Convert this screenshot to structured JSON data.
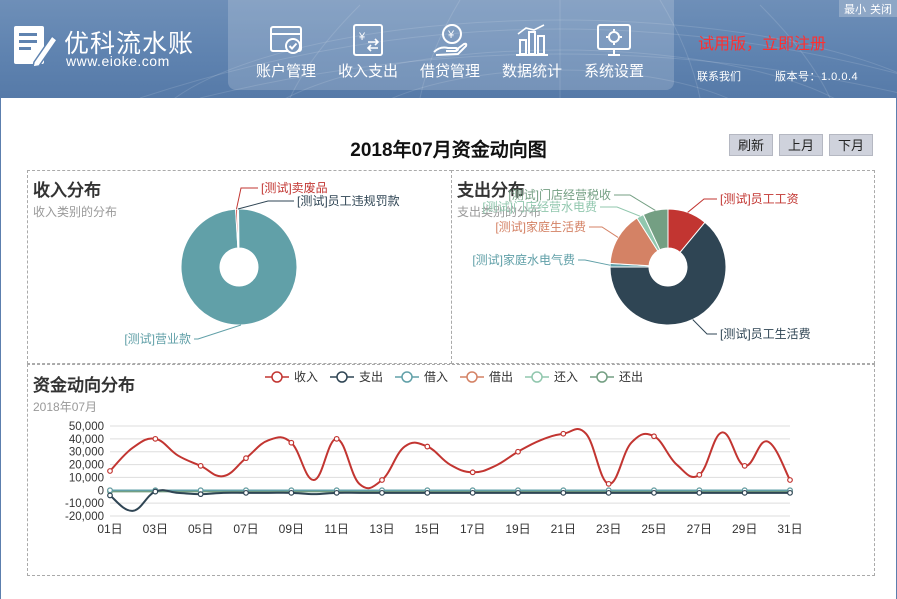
{
  "header": {
    "brand_name": "优科流水账",
    "brand_url": "www.eioke.com",
    "nav": [
      {
        "label": "账户管理",
        "icon": "account-card-icon"
      },
      {
        "label": "收入支出",
        "icon": "income-expense-icon"
      },
      {
        "label": "借贷管理",
        "icon": "loan-hand-icon"
      },
      {
        "label": "数据统计",
        "icon": "data-stats-icon"
      },
      {
        "label": "系统设置",
        "icon": "settings-monitor-icon"
      }
    ],
    "trial_text": "试用版，立即注册",
    "contact": "联系我们",
    "version": "版本号：1.0.0.4",
    "minimize": "最小",
    "close": "关闭"
  },
  "page": {
    "title": "2018年07月资金动向图",
    "buttons": {
      "refresh": "刷新",
      "prev": "上月",
      "next": "下月"
    }
  },
  "colors": {
    "income": "#c23531",
    "expense": "#2f4554",
    "borrow_in": "#61a0a8",
    "lend_out": "#d48265",
    "repay_in": "#91c7ae",
    "repay_out": "#749f83"
  },
  "chart_data": [
    {
      "type": "pie",
      "title": "收入分布",
      "subtitle": "收入类别的分布",
      "slices": [
        {
          "name": "[测试]营业款",
          "value": 99.2
        },
        {
          "name": "[测试]卖废品",
          "value": 0.5
        },
        {
          "name": "[测试]员工违规罚款",
          "value": 0.3
        }
      ]
    },
    {
      "type": "pie",
      "title": "支出分布",
      "subtitle": "支出类别的分布",
      "slices": [
        {
          "name": "[测试]员工工资",
          "value": 11
        },
        {
          "name": "[测试]员工生活费",
          "value": 64
        },
        {
          "name": "[测试]家庭水电气费",
          "value": 1
        },
        {
          "name": "[测试]家庭生活费",
          "value": 15
        },
        {
          "name": "[测试]门店经营水电费",
          "value": 2
        },
        {
          "name": "[测试]门店经营税收",
          "value": 7
        }
      ]
    },
    {
      "type": "line",
      "title": "资金动向分布",
      "subtitle": "2018年07月",
      "x": [
        "01日",
        "02日",
        "03日",
        "04日",
        "05日",
        "06日",
        "07日",
        "08日",
        "09日",
        "10日",
        "11日",
        "12日",
        "13日",
        "14日",
        "15日",
        "16日",
        "17日",
        "18日",
        "19日",
        "20日",
        "21日",
        "22日",
        "23日",
        "24日",
        "25日",
        "26日",
        "27日",
        "28日",
        "29日",
        "30日",
        "31日"
      ],
      "x_ticks": [
        "01日",
        "03日",
        "05日",
        "07日",
        "09日",
        "11日",
        "13日",
        "15日",
        "17日",
        "19日",
        "21日",
        "23日",
        "25日",
        "27日",
        "29日",
        "31日"
      ],
      "y_ticks": [
        "50,000",
        "40,000",
        "30,000",
        "20,000",
        "10,000",
        "0",
        "-10,000",
        "-20,000"
      ],
      "ylim": [
        -20000,
        50000
      ],
      "legend_position": "top",
      "series": [
        {
          "name": "收入",
          "values": [
            15000,
            33000,
            40000,
            27000,
            19000,
            11000,
            25000,
            39000,
            37000,
            8000,
            40000,
            5000,
            8000,
            34000,
            34000,
            20000,
            14000,
            19000,
            30000,
            39000,
            44000,
            44000,
            5000,
            37000,
            42000,
            20000,
            12000,
            45000,
            19000,
            38000,
            8000
          ]
        },
        {
          "name": "支出",
          "values": [
            -4000,
            -16000,
            -1000,
            -2000,
            -3000,
            -2000,
            -2000,
            -2000,
            -2000,
            -3000,
            -2000,
            -2000,
            -2000,
            -2000,
            -2000,
            -2000,
            -2000,
            -2000,
            -2000,
            -2000,
            -2000,
            -2000,
            -2000,
            -2000,
            -2000,
            -2000,
            -2000,
            -2000,
            -2000,
            -2000,
            -2000
          ]
        },
        {
          "name": "借入",
          "values": [
            0,
            0,
            0,
            0,
            0,
            0,
            0,
            0,
            0,
            0,
            0,
            0,
            0,
            0,
            0,
            0,
            0,
            0,
            0,
            0,
            0,
            0,
            0,
            0,
            0,
            0,
            0,
            0,
            0,
            0,
            0
          ]
        },
        {
          "name": "借出",
          "values": [
            0,
            0,
            0,
            0,
            0,
            0,
            0,
            0,
            0,
            0,
            0,
            0,
            0,
            0,
            0,
            0,
            0,
            0,
            0,
            0,
            0,
            0,
            0,
            0,
            0,
            0,
            0,
            0,
            0,
            0,
            0
          ]
        },
        {
          "name": "还入",
          "values": [
            0,
            0,
            0,
            0,
            0,
            0,
            0,
            0,
            0,
            0,
            0,
            0,
            0,
            0,
            0,
            0,
            0,
            0,
            0,
            0,
            0,
            0,
            0,
            0,
            0,
            0,
            0,
            0,
            0,
            0,
            0
          ]
        },
        {
          "name": "还出",
          "values": [
            -1000,
            -1000,
            -1000,
            -1000,
            -1000,
            -1000,
            -1000,
            -1000,
            -1000,
            -1000,
            -1000,
            -1000,
            -1000,
            -1000,
            -1000,
            -1000,
            -1000,
            -1000,
            -1000,
            -1000,
            -1000,
            -1000,
            -1000,
            -1000,
            -1000,
            -1000,
            -1000,
            -1000,
            -1000,
            -1000,
            -1000
          ]
        }
      ]
    }
  ]
}
